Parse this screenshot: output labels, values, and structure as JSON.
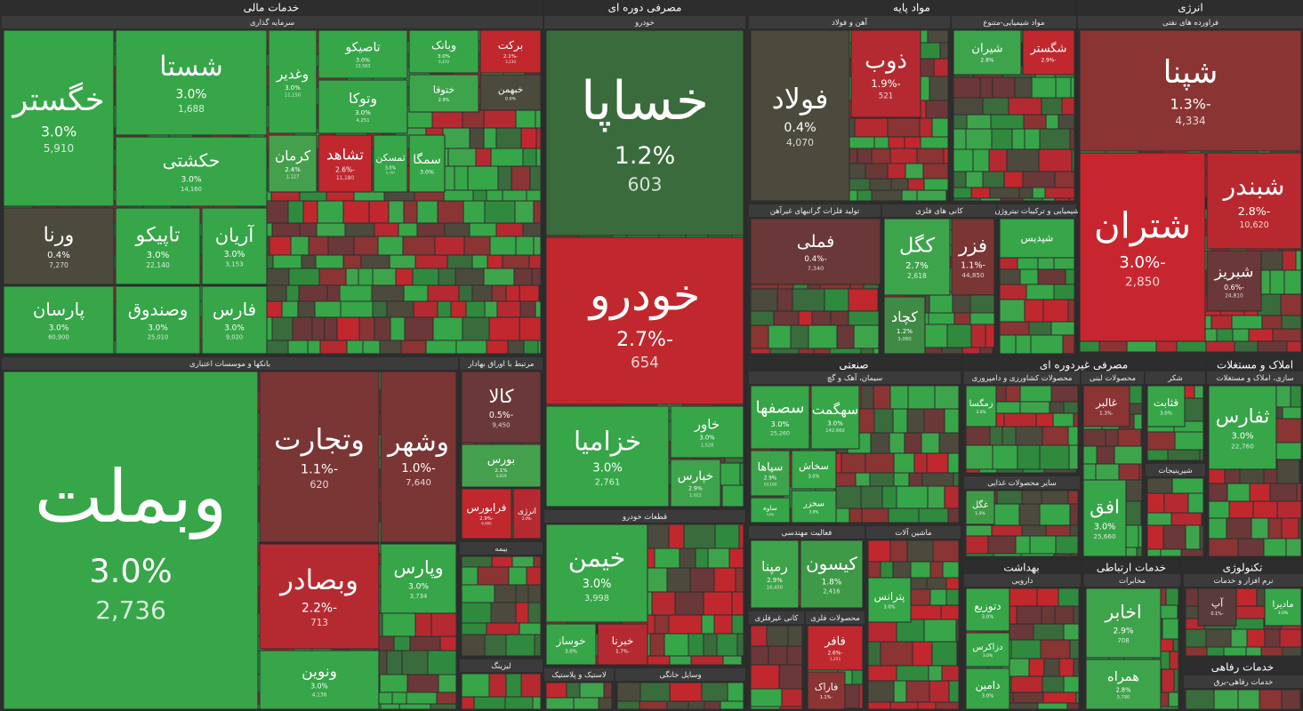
{
  "sectors": [
    {
      "name": "خدمات مالی",
      "groups": [
        {
          "name": "سرمایه گذاری",
          "tiles": [
            {
              "symbol": "خگستر",
              "change": "3.0%",
              "volume": "5,910",
              "color": "#36a648"
            },
            {
              "symbol": "شستا",
              "change": "3.0%",
              "volume": "1,688",
              "color": "#36a648"
            },
            {
              "symbol": "حکشتی",
              "change": "3.0%",
              "volume": "14,160",
              "color": "#36a648"
            },
            {
              "symbol": "ورنا",
              "change": "0.4%",
              "volume": "7,270",
              "color": "#4b4a3c"
            },
            {
              "symbol": "تاپیکو",
              "change": "3.0%",
              "volume": "22,140",
              "color": "#36a648"
            },
            {
              "symbol": "آریان",
              "change": "3.0%",
              "volume": "3,153",
              "color": "#36a648"
            },
            {
              "symbol": "پارسان",
              "change": "3.0%",
              "volume": "60,900",
              "color": "#36a648"
            },
            {
              "symbol": "وصندوق",
              "change": "3.0%",
              "volume": "25,010",
              "color": "#36a648"
            },
            {
              "symbol": "فارس",
              "change": "3.0%",
              "volume": "9,020",
              "color": "#36a648"
            },
            {
              "symbol": "وغدیر",
              "change": "3.0%",
              "volume": "11,150",
              "color": "#36a648"
            },
            {
              "symbol": "تاصیکو",
              "change": "3.0%",
              "volume": "13,560",
              "color": "#36a648"
            },
            {
              "symbol": "وتوکا",
              "change": "3.0%",
              "volume": "4,251",
              "color": "#36a648"
            },
            {
              "symbol": "وبانک",
              "change": "3.0%",
              "volume": "9,410",
              "color": "#36a648"
            },
            {
              "symbol": "برکت",
              "change": "-2.1%",
              "volume": "3,230",
              "color": "#c0282e"
            },
            {
              "symbol": "ختوقا",
              "change": "2.9%",
              "color": "#3ea44c"
            },
            {
              "symbol": "خبهمن",
              "change": "0.0%",
              "color": "#4b4a3c"
            },
            {
              "symbol": "کرمان",
              "change": "2.4%",
              "volume": "1,127",
              "color": "#45a04e"
            },
            {
              "symbol": "تشاهد",
              "change": "-2.6%",
              "volume": "11,180",
              "color": "#c0282e"
            },
            {
              "symbol": "ثمسکن",
              "change": "3.0%",
              "volume": "2,767",
              "color": "#36a648"
            },
            {
              "symbol": "سمگا",
              "change": "3.0%",
              "color": "#36a648"
            }
          ]
        },
        {
          "name": "بانکها و موسسات اعتباری",
          "tiles": [
            {
              "symbol": "وبملت",
              "change": "3.0%",
              "volume": "2,736",
              "color": "#36a648"
            },
            {
              "symbol": "وتجارت",
              "change": "-1.1%",
              "volume": "620",
              "color": "#7a3535"
            },
            {
              "symbol": "وشهر",
              "change": "-1.0%",
              "volume": "7,640",
              "color": "#7a3535"
            },
            {
              "symbol": "وبصادر",
              "change": "-2.2%",
              "volume": "713",
              "color": "#b52a30"
            },
            {
              "symbol": "وپارس",
              "change": "3.0%",
              "volume": "3,734",
              "color": "#36a648"
            },
            {
              "symbol": "ونوین",
              "change": "3.0%",
              "volume": "4,136",
              "color": "#36a648"
            }
          ]
        },
        {
          "name": "مرتبط با اوراق بهادار",
          "tiles": [
            {
              "symbol": "کالا",
              "change": "-0.5%",
              "volume": "9,450",
              "color": "#6a3838"
            },
            {
              "symbol": "بورس",
              "change": "2.1%",
              "volume": "4,829",
              "color": "#45a04e"
            },
            {
              "symbol": "فرابورس",
              "change": "-2.9%",
              "volume": "6,660",
              "color": "#c0282e"
            },
            {
              "symbol": "انرژی",
              "change": "-2.0%",
              "color": "#b52a30"
            }
          ]
        },
        {
          "name": "بیمه",
          "tiles": []
        },
        {
          "name": "لیزینگ",
          "tiles": []
        }
      ]
    },
    {
      "name": "مصرفی دوره ای",
      "groups": [
        {
          "name": "خودرو",
          "tiles": [
            {
              "symbol": "خساپا",
              "change": "1.2%",
              "volume": "603",
              "color": "#3a6b3c"
            },
            {
              "symbol": "خودرو",
              "change": "-2.7%",
              "volume": "654",
              "color": "#c0282e"
            },
            {
              "symbol": "خزامیا",
              "change": "3.0%",
              "volume": "2,761",
              "color": "#36a648"
            },
            {
              "symbol": "خاور",
              "change": "3.0%",
              "volume": "1,528",
              "color": "#36a648"
            },
            {
              "symbol": "خپارس",
              "change": "2.9%",
              "volume": "1,022",
              "color": "#3ea44c"
            }
          ]
        },
        {
          "name": "قطعات خودرو",
          "tiles": [
            {
              "symbol": "خیمن",
              "change": "3.0%",
              "volume": "3,998",
              "color": "#36a648"
            },
            {
              "symbol": "خوساز",
              "change": "3.0%",
              "color": "#36a648"
            },
            {
              "symbol": "خبرنا",
              "change": "-1.7%",
              "color": "#b52a30"
            }
          ]
        },
        {
          "name": "لاستیک و پلاستیک",
          "tiles": []
        },
        {
          "name": "وسایل خانگی",
          "tiles": []
        }
      ]
    },
    {
      "name": "مواد پایه",
      "groups": [
        {
          "name": "آهن و فولاد",
          "tiles": [
            {
              "symbol": "فولاد",
              "change": "0.4%",
              "volume": "4,070",
              "color": "#4b4a3c"
            },
            {
              "symbol": "ذوب",
              "change": "-1.9%",
              "volume": "521",
              "color": "#b52a30"
            }
          ]
        },
        {
          "name": "مواد شیمیایی-متنوع",
          "tiles": [
            {
              "symbol": "شیران",
              "change": "2.8%",
              "color": "#3ea44c"
            },
            {
              "symbol": "شگستر",
              "change": "-2.9%",
              "color": "#c0282e"
            }
          ]
        },
        {
          "name": "تولید فلزات گرانبهای غیرآهن",
          "tiles": [
            {
              "symbol": "فملی",
              "change": "-0.4%",
              "volume": "7,340",
              "color": "#6a3838"
            }
          ]
        },
        {
          "name": "کانی های فلزی",
          "tiles": [
            {
              "symbol": "کگل",
              "change": "2.7%",
              "volume": "2,618",
              "color": "#3ea44c"
            },
            {
              "symbol": "فزر",
              "change": "-1.1%",
              "volume": "44,850",
              "color": "#7a3535"
            },
            {
              "symbol": "کچاد",
              "change": "1.2%",
              "volume": "3,060",
              "color": "#3f8a45"
            }
          ]
        },
        {
          "name": "شیمیایی و ترکیبات نیتروژن",
          "tiles": [
            {
              "symbol": "شپدیس",
              "color": "#36a648"
            }
          ]
        }
      ]
    },
    {
      "name": "انرژی",
      "groups": [
        {
          "name": "فراورده های نفتی",
          "tiles": [
            {
              "symbol": "شپنا",
              "change": "-1.3%",
              "volume": "4,334",
              "color": "#8a3434"
            },
            {
              "symbol": "شتران",
              "change": "-3.0%",
              "volume": "2,850",
              "color": "#c8262e"
            },
            {
              "symbol": "شبندر",
              "change": "-2.8%",
              "volume": "10,620",
              "color": "#b8292f"
            },
            {
              "symbol": "شبریز",
              "change": "-0.6%",
              "volume": "24,810",
              "color": "#6a3838"
            }
          ]
        }
      ]
    },
    {
      "name": "صنعتی",
      "groups": [
        {
          "name": "سیمان، آهک و گچ",
          "tiles": [
            {
              "symbol": "سصفها",
              "change": "3.0%",
              "volume": "25,260",
              "color": "#36a648"
            },
            {
              "symbol": "سهگمت",
              "change": "3.0%",
              "volume": "142,660",
              "color": "#36a648"
            },
            {
              "symbol": "سپاها",
              "change": "2.9%",
              "volume": "19,160",
              "color": "#3ea44c"
            },
            {
              "symbol": "سخاش",
              "change": "3.0%",
              "color": "#36a648"
            },
            {
              "symbol": "ساوه",
              "change": "3.0%",
              "color": "#36a648"
            },
            {
              "symbol": "سخزر",
              "change": "3.0%",
              "color": "#36a648"
            }
          ]
        },
        {
          "name": "فعالیت مهندسی",
          "tiles": [
            {
              "symbol": "رمپنا",
              "change": "2.9%",
              "volume": "16,450",
              "color": "#3ea44c"
            },
            {
              "symbol": "کیسون",
              "change": "1.8%",
              "volume": "2,416",
              "color": "#3f9a48"
            }
          ]
        },
        {
          "name": "ماشین آلات",
          "tiles": [
            {
              "symbol": "پترانس",
              "change": "3.0%",
              "color": "#36a648"
            }
          ]
        },
        {
          "name": "کانی غیرفلزی",
          "tiles": []
        },
        {
          "name": "محصولات فلزی",
          "tiles": [
            {
              "symbol": "فافر",
              "change": "-2.6%",
              "volume": "1,251",
              "color": "#c0282e"
            },
            {
              "symbol": "فاراک",
              "change": "-1.1%",
              "color": "#8a3434"
            }
          ]
        }
      ]
    },
    {
      "name": "مصرفی غیردوره ای",
      "groups": [
        {
          "name": "محصولات کشاورزی و دامپروری",
          "tiles": [
            {
              "symbol": "زمگسا",
              "change": "3.0%",
              "color": "#36a648"
            }
          ]
        },
        {
          "name": "محصولات لبنی",
          "tiles": [
            {
              "symbol": "غالبر",
              "change": "-1.3%",
              "color": "#8a3434"
            },
            {
              "symbol": "افق",
              "change": "3.0%",
              "volume": "25,660",
              "color": "#36a648"
            }
          ]
        },
        {
          "name": "شکر",
          "tiles": [
            {
              "symbol": "قثابت",
              "change": "3.0%",
              "color": "#36a648"
            }
          ]
        },
        {
          "name": "سایر محصولات غذایی",
          "tiles": [
            {
              "symbol": "غگل",
              "change": "1.5%",
              "color": "#3f9a48"
            }
          ]
        },
        {
          "name": "شیرینیجات",
          "tiles": []
        }
      ]
    },
    {
      "name": "املاک و مستغلات",
      "groups": [
        {
          "name": "سازی، املاک و مستغلات",
          "tiles": [
            {
              "symbol": "ثفارس",
              "change": "3.0%",
              "volume": "22,760",
              "color": "#36a648"
            }
          ]
        }
      ]
    },
    {
      "name": "بهداشت",
      "groups": [
        {
          "name": "دارویی",
          "tiles": [
            {
              "symbol": "دتوزیع",
              "change": "3.0%",
              "color": "#36a648"
            },
            {
              "symbol": "دزاکرس",
              "change": "3.0%",
              "color": "#36a648"
            },
            {
              "symbol": "دامین",
              "change": "3.0%",
              "color": "#36a648"
            }
          ]
        }
      ]
    },
    {
      "name": "خدمات ارتباطی",
      "groups": [
        {
          "name": "مخابرات",
          "tiles": [
            {
              "symbol": "اخابر",
              "change": "2.9%",
              "volume": "708",
              "color": "#3ea44c"
            },
            {
              "symbol": "همراه",
              "change": "2.8%",
              "volume": "5,790",
              "color": "#3ea44c"
            }
          ]
        }
      ]
    },
    {
      "name": "تکنولوژی",
      "groups": [
        {
          "name": "نرم افزار و خدمات",
          "tiles": [
            {
              "symbol": "آپ",
              "change": "-0.1%",
              "color": "#5a3b3b"
            },
            {
              "symbol": "ماديرا",
              "change": "3.0%",
              "color": "#36a648"
            }
          ]
        }
      ]
    },
    {
      "name": "خدمات رفاهی",
      "groups": [
        {
          "name": "خدمات رفاهی-برق",
          "tiles": []
        }
      ]
    }
  ]
}
